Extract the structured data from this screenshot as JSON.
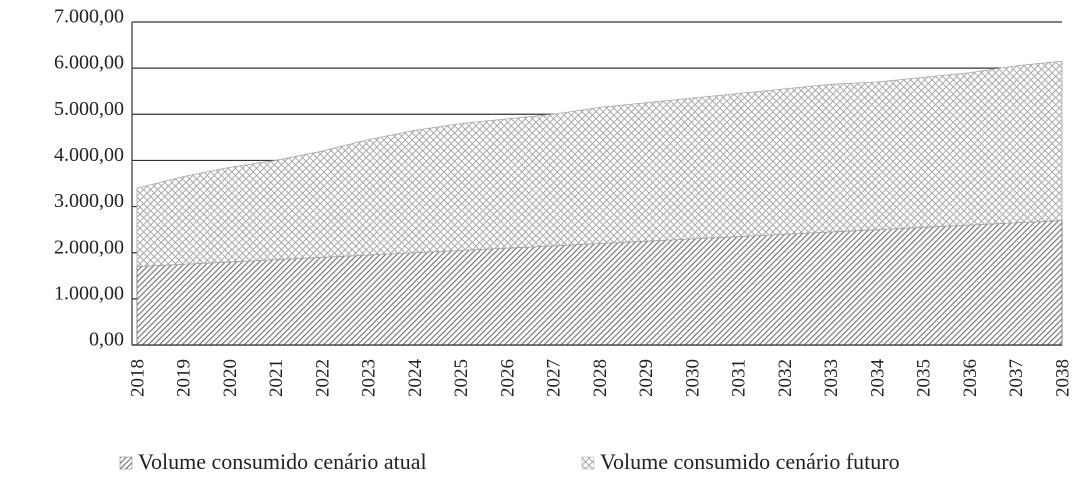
{
  "chart_data": {
    "type": "stacked_area",
    "categories": [
      "2018",
      "2019",
      "2020",
      "2021",
      "2022",
      "2023",
      "2024",
      "2025",
      "2026",
      "2027",
      "2028",
      "2029",
      "2030",
      "2031",
      "2032",
      "2033",
      "2034",
      "2035",
      "2036",
      "2037",
      "2038"
    ],
    "series": [
      {
        "name": "Volume consumido cenário atual",
        "color": "#6e6e6e",
        "values": [
          1700,
          1750,
          1800,
          1850,
          1900,
          1950,
          2000,
          2050,
          2100,
          2150,
          2200,
          2250,
          2300,
          2350,
          2400,
          2450,
          2500,
          2550,
          2600,
          2650,
          2700
        ]
      },
      {
        "name": "Volume consumido cenário futuro",
        "color": "#a8a8a8",
        "values": [
          1700,
          1900,
          2050,
          2150,
          2300,
          2500,
          2650,
          2750,
          2800,
          2850,
          2950,
          3000,
          3050,
          3100,
          3150,
          3200,
          3200,
          3250,
          3300,
          3400,
          3450
        ]
      }
    ],
    "ylim": [
      0,
      7000
    ],
    "yticks": [
      {
        "value": 0,
        "label": "0,00"
      },
      {
        "value": 1000,
        "label": "1.000,00"
      },
      {
        "value": 2000,
        "label": "2.000,00"
      },
      {
        "value": 3000,
        "label": "3.000,00"
      },
      {
        "value": 4000,
        "label": "4.000,00"
      },
      {
        "value": 5000,
        "label": "5.000,00"
      },
      {
        "value": 6000,
        "label": "6.000,00"
      },
      {
        "value": 7000,
        "label": "7.000,00"
      }
    ],
    "grid": true,
    "legend": "bottom"
  }
}
